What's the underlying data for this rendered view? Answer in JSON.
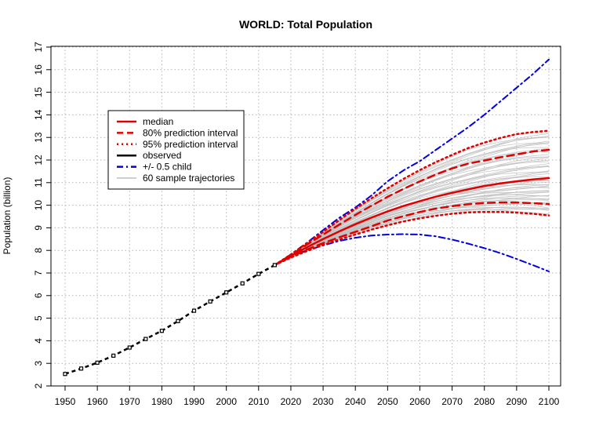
{
  "chart_data": {
    "type": "line",
    "title": "WORLD: Total Population",
    "xlabel": "",
    "ylabel": "Population (billion)",
    "xlim": [
      1950,
      2100
    ],
    "ylim": [
      2,
      17
    ],
    "x_ticks": [
      1950,
      1960,
      1970,
      1980,
      1990,
      2000,
      2010,
      2020,
      2030,
      2040,
      2050,
      2060,
      2070,
      2080,
      2090,
      2100
    ],
    "y_ticks": [
      2,
      3,
      4,
      5,
      6,
      7,
      8,
      9,
      10,
      11,
      12,
      13,
      14,
      15,
      16,
      17
    ],
    "grid": true,
    "legend_position": "top-left",
    "colors": {
      "median": "#e00000",
      "observed": "#000000",
      "child": "#0000e0",
      "trajectories": "#bebebe"
    },
    "legend": [
      {
        "label": "median",
        "color": "#e00000",
        "style": "solid"
      },
      {
        "label": "80% prediction interval",
        "color": "#e00000",
        "style": "dashed"
      },
      {
        "label": "95% prediction interval",
        "color": "#e00000",
        "style": "dotted"
      },
      {
        "label": "observed",
        "color": "#000000",
        "style": "solid"
      },
      {
        "label": "+/- 0.5 child",
        "color": "#0000e0",
        "style": "dashdot"
      },
      {
        "label": "60 sample trajectories",
        "color": "#bebebe",
        "style": "solid"
      }
    ],
    "observed": {
      "x": [
        1950,
        1955,
        1960,
        1965,
        1970,
        1975,
        1980,
        1985,
        1990,
        1995,
        2000,
        2005,
        2010,
        2015
      ],
      "y": [
        2.53,
        2.77,
        3.03,
        3.34,
        3.7,
        4.08,
        4.44,
        4.87,
        5.33,
        5.74,
        6.14,
        6.54,
        6.96,
        7.35
      ]
    },
    "projection_x": [
      2015,
      2020,
      2025,
      2030,
      2035,
      2040,
      2045,
      2050,
      2055,
      2060,
      2065,
      2070,
      2075,
      2080,
      2085,
      2090,
      2095,
      2100
    ],
    "series": [
      {
        "name": "median",
        "values": [
          7.35,
          7.76,
          8.14,
          8.5,
          8.84,
          9.16,
          9.45,
          9.73,
          9.97,
          10.18,
          10.38,
          10.55,
          10.7,
          10.85,
          10.97,
          11.06,
          11.14,
          11.2
        ]
      },
      {
        "name": "80% prediction interval (upper)",
        "values": [
          7.35,
          7.8,
          8.26,
          8.7,
          9.14,
          9.57,
          9.98,
          10.37,
          10.73,
          11.06,
          11.36,
          11.63,
          11.84,
          11.98,
          12.12,
          12.25,
          12.38,
          12.45
        ]
      },
      {
        "name": "80% prediction interval (lower)",
        "values": [
          7.35,
          7.72,
          8.04,
          8.32,
          8.58,
          8.82,
          9.07,
          9.32,
          9.52,
          9.7,
          9.85,
          9.96,
          10.05,
          10.1,
          10.12,
          10.12,
          10.09,
          10.05
        ]
      },
      {
        "name": "95% prediction interval (upper)",
        "values": [
          7.35,
          7.82,
          8.32,
          8.82,
          9.34,
          9.84,
          10.31,
          10.75,
          11.17,
          11.56,
          11.91,
          12.23,
          12.53,
          12.77,
          12.98,
          13.15,
          13.24,
          13.3
        ]
      },
      {
        "name": "95% prediction interval (lower)",
        "values": [
          7.35,
          7.68,
          7.97,
          8.24,
          8.48,
          8.7,
          8.92,
          9.11,
          9.28,
          9.42,
          9.53,
          9.62,
          9.68,
          9.7,
          9.7,
          9.67,
          9.62,
          9.55
        ]
      },
      {
        "name": "+0.5 child",
        "values": [
          7.35,
          7.82,
          8.34,
          8.9,
          9.44,
          9.9,
          10.43,
          11.06,
          11.55,
          11.95,
          12.45,
          12.95,
          13.45,
          14.0,
          14.6,
          15.2,
          15.8,
          16.45
        ]
      },
      {
        "name": "-0.5 child",
        "values": [
          7.35,
          7.74,
          8.0,
          8.22,
          8.42,
          8.56,
          8.66,
          8.7,
          8.72,
          8.7,
          8.62,
          8.48,
          8.3,
          8.1,
          7.88,
          7.62,
          7.35,
          7.07
        ]
      }
    ]
  }
}
